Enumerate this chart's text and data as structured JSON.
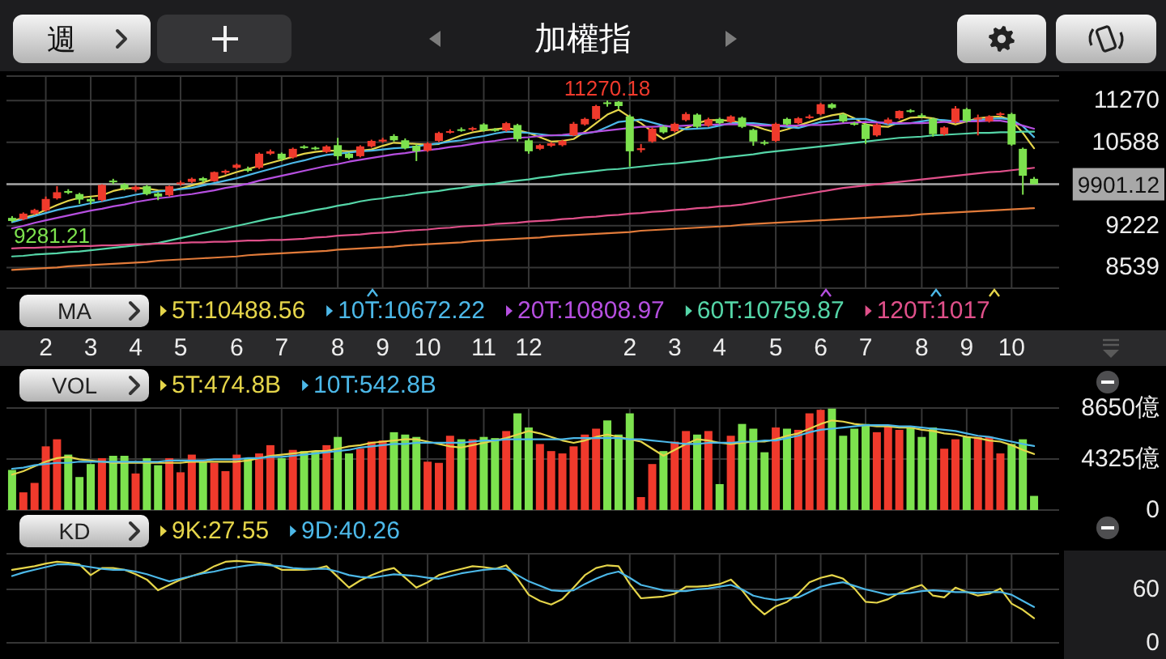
{
  "chart_data": [
    {
      "type": "candlestick",
      "title": "加權指",
      "legend": "bottom",
      "legend_title": "MA",
      "grid": true,
      "categories": [
        null,
        null,
        null,
        "2",
        null,
        null,
        null,
        "3",
        null,
        null,
        null,
        "4",
        null,
        null,
        null,
        "5",
        null,
        null,
        null,
        null,
        "6",
        null,
        null,
        null,
        "7",
        null,
        null,
        null,
        null,
        "8",
        null,
        null,
        null,
        "9",
        null,
        null,
        null,
        "10",
        null,
        null,
        null,
        null,
        "11",
        null,
        null,
        null,
        "12",
        null,
        null,
        null,
        null,
        null,
        null,
        null,
        null,
        "2",
        null,
        null,
        null,
        "3",
        null,
        null,
        null,
        "4",
        null,
        null,
        null,
        null,
        "5",
        null,
        null,
        null,
        "6",
        null,
        null,
        null,
        "7",
        null,
        null,
        null,
        null,
        "8",
        null,
        null,
        null,
        "9",
        null,
        null,
        null,
        "10",
        null,
        null
      ],
      "ohlc": [
        [
          9350,
          9380,
          9281.21,
          9300
        ],
        [
          9330,
          9440,
          9310,
          9420
        ],
        [
          9420,
          9500,
          9400,
          9480
        ],
        [
          9470,
          9700,
          9450,
          9660
        ],
        [
          9670,
          9870,
          9650,
          9770
        ],
        [
          9790,
          9820,
          9740,
          9760
        ],
        [
          9740,
          9760,
          9580,
          9650
        ],
        [
          9660,
          9700,
          9570,
          9620
        ],
        [
          9640,
          9900,
          9620,
          9890
        ],
        [
          9960,
          9990,
          9900,
          9940
        ],
        [
          9900,
          9920,
          9800,
          9830
        ],
        [
          9810,
          9880,
          9780,
          9860
        ],
        [
          9870,
          9890,
          9720,
          9740
        ],
        [
          9750,
          9770,
          9640,
          9700
        ],
        [
          9720,
          9880,
          9700,
          9870
        ],
        [
          9910,
          9960,
          9880,
          9930
        ],
        [
          9940,
          10010,
          9920,
          9990
        ],
        [
          10000,
          10020,
          9930,
          9960
        ],
        [
          9950,
          10110,
          9940,
          10100
        ],
        [
          10090,
          10140,
          10060,
          10120
        ],
        [
          10170,
          10240,
          10150,
          10220
        ],
        [
          10150,
          10190,
          10100,
          10120
        ],
        [
          10170,
          10420,
          10150,
          10400
        ],
        [
          10400,
          10470,
          10380,
          10440
        ],
        [
          10400,
          10420,
          10280,
          10310
        ],
        [
          10340,
          10500,
          10320,
          10480
        ],
        [
          10520,
          10540,
          10480,
          10500
        ],
        [
          10500,
          10520,
          10460,
          10480
        ],
        [
          10430,
          10540,
          10410,
          10520
        ],
        [
          10540,
          10660,
          10300,
          10360
        ],
        [
          10400,
          10420,
          10310,
          10330
        ],
        [
          10360,
          10540,
          10340,
          10520
        ],
        [
          10520,
          10630,
          10500,
          10610
        ],
        [
          10600,
          10660,
          10580,
          10630
        ],
        [
          10690,
          10720,
          10600,
          10620
        ],
        [
          10620,
          10650,
          10470,
          10490
        ],
        [
          10530,
          10560,
          10280,
          10440
        ],
        [
          10450,
          10590,
          10430,
          10570
        ],
        [
          10610,
          10760,
          10590,
          10740
        ],
        [
          10750,
          10800,
          10730,
          10770
        ],
        [
          10800,
          10830,
          10760,
          10790
        ],
        [
          10800,
          10840,
          10770,
          10820
        ],
        [
          10880,
          10900,
          10760,
          10780
        ],
        [
          10800,
          10820,
          10760,
          10790
        ],
        [
          10780,
          10920,
          10760,
          10900
        ],
        [
          10870,
          10890,
          10600,
          10640
        ],
        [
          10620,
          10650,
          10400,
          10440
        ],
        [
          10480,
          10560,
          10460,
          10540
        ],
        [
          10530,
          10590,
          10510,
          10570
        ],
        [
          10540,
          10630,
          10520,
          10610
        ],
        [
          10700,
          10920,
          10690,
          10890
        ],
        [
          10880,
          10990,
          10860,
          10970
        ],
        [
          10970,
          11200,
          10950,
          11180
        ],
        [
          11240,
          11270.18,
          11170,
          11230
        ],
        [
          11250,
          11260,
          11130,
          11180
        ],
        [
          11010,
          11040,
          10190,
          10440
        ],
        [
          10460,
          10560,
          10420,
          10490
        ],
        [
          10600,
          10830,
          10580,
          10810
        ],
        [
          10840,
          10860,
          10730,
          10750
        ],
        [
          10770,
          10910,
          10750,
          10890
        ],
        [
          10950,
          11080,
          10930,
          11050
        ],
        [
          11040,
          11060,
          10820,
          10840
        ],
        [
          10860,
          10990,
          10840,
          10960
        ],
        [
          10970,
          10990,
          10880,
          10900
        ],
        [
          10920,
          11030,
          10900,
          11010
        ],
        [
          10990,
          11010,
          10820,
          10840
        ],
        [
          10790,
          10810,
          10530,
          10600
        ],
        [
          10590,
          10620,
          10540,
          10570
        ],
        [
          10610,
          10910,
          10590,
          10890
        ],
        [
          10970,
          10990,
          10860,
          10880
        ],
        [
          10900,
          11000,
          10880,
          10980
        ],
        [
          11000,
          11040,
          10970,
          11010
        ],
        [
          11050,
          11230,
          11030,
          11210
        ],
        [
          11210,
          11230,
          11130,
          11150
        ],
        [
          11040,
          11060,
          10910,
          10930
        ],
        [
          10900,
          10920,
          10860,
          10880
        ],
        [
          10880,
          10900,
          10560,
          10640
        ],
        [
          10700,
          10900,
          10680,
          10880
        ],
        [
          10900,
          10990,
          10880,
          10960
        ],
        [
          10980,
          11110,
          10960,
          11100
        ],
        [
          11110,
          11130,
          11070,
          11090
        ],
        [
          11030,
          11060,
          10990,
          11010
        ],
        [
          10970,
          10990,
          10680,
          10720
        ],
        [
          10720,
          10850,
          10700,
          10830
        ],
        [
          10920,
          11180,
          10900,
          11140
        ],
        [
          11130,
          11150,
          10910,
          10930
        ],
        [
          10960,
          11040,
          10700,
          10990
        ],
        [
          10930,
          11030,
          10910,
          11010
        ],
        [
          11040,
          11080,
          11010,
          11060
        ],
        [
          11050,
          11070,
          10530,
          10550
        ],
        [
          10480,
          10500,
          9730,
          10040
        ],
        [
          9990,
          10020,
          9900,
          9901.12
        ]
      ],
      "colors": [
        "#7de24e",
        "#f03a2c",
        "#f03a2c",
        "#f03a2c",
        "#f03a2c",
        "#7de24e",
        "#7de24e",
        "#7de24e",
        "#f03a2c",
        "#7de24e",
        "#7de24e",
        "#f03a2c",
        "#7de24e",
        "#7de24e",
        "#f03a2c",
        "#f03a2c",
        "#f03a2c",
        "#7de24e",
        "#f03a2c",
        "#f03a2c",
        "#f03a2c",
        "#7de24e",
        "#f03a2c",
        "#f03a2c",
        "#7de24e",
        "#f03a2c",
        "#7de24e",
        "#7de24e",
        "#f03a2c",
        "#7de24e",
        "#7de24e",
        "#f03a2c",
        "#f03a2c",
        "#f03a2c",
        "#7de24e",
        "#7de24e",
        "#7de24e",
        "#f03a2c",
        "#f03a2c",
        "#f03a2c",
        "#7de24e",
        "#f03a2c",
        "#7de24e",
        "#7de24e",
        "#f03a2c",
        "#7de24e",
        "#7de24e",
        "#f03a2c",
        "#f03a2c",
        "#f03a2c",
        "#f03a2c",
        "#f03a2c",
        "#f03a2c",
        "#7de24e",
        "#7de24e",
        "#7de24e",
        "#f03a2c",
        "#f03a2c",
        "#7de24e",
        "#f03a2c",
        "#f03a2c",
        "#7de24e",
        "#f03a2c",
        "#7de24e",
        "#f03a2c",
        "#7de24e",
        "#7de24e",
        "#7de24e",
        "#f03a2c",
        "#7de24e",
        "#f03a2c",
        "#f03a2c",
        "#f03a2c",
        "#7de24e",
        "#7de24e",
        "#7de24e",
        "#7de24e",
        "#f03a2c",
        "#f03a2c",
        "#f03a2c",
        "#7de24e",
        "#7de24e",
        "#7de24e",
        "#f03a2c",
        "#f03a2c",
        "#7de24e",
        "#f03a2c",
        "#f03a2c",
        "#f03a2c",
        "#7de24e",
        "#7de24e",
        "#7de24e"
      ],
      "series": [
        {
          "name": "5T:10488.56",
          "type": "line",
          "color": "#e5d54a",
          "values": [
            9300,
            9350,
            9400,
            9480,
            9560,
            9630,
            9680,
            9700,
            9720,
            9790,
            9830,
            9840,
            9830,
            9800,
            9790,
            9830,
            9880,
            9930,
            9990,
            10040,
            10100,
            10150,
            10200,
            10250,
            10300,
            10350,
            10400,
            10430,
            10450,
            10450,
            10440,
            10450,
            10470,
            10530,
            10580,
            10570,
            10560,
            10550,
            10560,
            10630,
            10700,
            10750,
            10780,
            10800,
            10820,
            10790,
            10740,
            10670,
            10600,
            10610,
            10640,
            10760,
            10900,
            11040,
            11120,
            11000,
            10900,
            10760,
            10640,
            10720,
            10820,
            10900,
            10950,
            10950,
            10940,
            10900,
            10860,
            10800,
            10750,
            10800,
            10860,
            10920,
            10980,
            11030,
            11060,
            10980,
            10880,
            10850,
            10840,
            10920,
            10990,
            11000,
            10980,
            10930,
            10880,
            10930,
            10980,
            11000,
            11010,
            10950,
            10740,
            10488.56
          ]
        },
        {
          "name": "10T:10672.22",
          "type": "line",
          "color": "#4cb8e8",
          "values": [
            9280,
            9330,
            9380,
            9430,
            9480,
            9520,
            9550,
            9590,
            9620,
            9660,
            9690,
            9730,
            9760,
            9780,
            9800,
            9820,
            9840,
            9880,
            9920,
            9960,
            10000,
            10050,
            10100,
            10150,
            10200,
            10250,
            10290,
            10340,
            10380,
            10400,
            10420,
            10440,
            10450,
            10470,
            10490,
            10500,
            10520,
            10550,
            10570,
            10600,
            10620,
            10660,
            10690,
            10730,
            10760,
            10750,
            10740,
            10720,
            10700,
            10700,
            10700,
            10730,
            10760,
            10840,
            10920,
            10940,
            10960,
            10910,
            10860,
            10830,
            10800,
            10810,
            10820,
            10860,
            10900,
            10900,
            10900,
            10880,
            10860,
            10840,
            10820,
            10870,
            10920,
            10940,
            10960,
            10970,
            10970,
            10920,
            10880,
            10890,
            10900,
            10930,
            10960,
            10950,
            10930,
            10940,
            10950,
            10970,
            10980,
            10960,
            10850,
            10672.22
          ]
        },
        {
          "name": "20T:10808.97",
          "type": "line",
          "color": "#b64fe0",
          "values": [
            9180,
            9220,
            9270,
            9310,
            9350,
            9390,
            9430,
            9470,
            9500,
            9540,
            9570,
            9610,
            9640,
            9670,
            9690,
            9720,
            9740,
            9770,
            9800,
            9840,
            9870,
            9910,
            9960,
            10000,
            10040,
            10080,
            10120,
            10160,
            10200,
            10230,
            10270,
            10300,
            10330,
            10360,
            10390,
            10410,
            10440,
            10460,
            10480,
            10510,
            10530,
            10560,
            10590,
            10610,
            10640,
            10660,
            10670,
            10690,
            10700,
            10710,
            10730,
            10740,
            10760,
            10780,
            10800,
            10820,
            10840,
            10840,
            10850,
            10850,
            10860,
            10870,
            10870,
            10880,
            10880,
            10880,
            10870,
            10860,
            10860,
            10860,
            10860,
            10870,
            10870,
            10880,
            10900,
            10910,
            10920,
            10910,
            10910,
            10900,
            10900,
            10900,
            10910,
            10920,
            10920,
            10930,
            10930,
            10940,
            10940,
            10910,
            10860,
            10808.97
          ]
        },
        {
          "name": "60T:10759.87",
          "type": "line",
          "color": "#55d6a8",
          "values": [
            8720,
            8730,
            8750,
            8760,
            8770,
            8790,
            8800,
            8820,
            8840,
            8860,
            8880,
            8900,
            8920,
            8940,
            8980,
            9020,
            9060,
            9100,
            9140,
            9180,
            9220,
            9260,
            9300,
            9340,
            9370,
            9410,
            9440,
            9480,
            9510,
            9550,
            9580,
            9620,
            9650,
            9670,
            9700,
            9720,
            9750,
            9770,
            9790,
            9820,
            9840,
            9870,
            9890,
            9910,
            9940,
            9960,
            9980,
            10010,
            10030,
            10060,
            10080,
            10100,
            10120,
            10140,
            10150,
            10170,
            10190,
            10210,
            10230,
            10240,
            10260,
            10280,
            10300,
            10330,
            10350,
            10370,
            10390,
            10420,
            10440,
            10460,
            10480,
            10500,
            10520,
            10540,
            10560,
            10580,
            10600,
            10620,
            10640,
            10660,
            10670,
            10680,
            10700,
            10710,
            10720,
            10730,
            10740,
            10740,
            10750,
            10750,
            10760,
            10759.87
          ]
        },
        {
          "name": "120T:1017",
          "type": "line",
          "color": "#e0508a",
          "values": [
            8850,
            8860,
            8860,
            8870,
            8870,
            8880,
            8890,
            8890,
            8900,
            8900,
            8910,
            8920,
            8920,
            8930,
            8930,
            8940,
            8950,
            8950,
            8960,
            8960,
            8970,
            8980,
            8980,
            8990,
            8990,
            9000,
            9010,
            9030,
            9040,
            9060,
            9070,
            9080,
            9100,
            9110,
            9120,
            9140,
            9150,
            9160,
            9180,
            9190,
            9210,
            9220,
            9230,
            9250,
            9260,
            9270,
            9290,
            9300,
            9310,
            9330,
            9340,
            9360,
            9370,
            9390,
            9400,
            9420,
            9430,
            9450,
            9460,
            9480,
            9490,
            9510,
            9520,
            9540,
            9550,
            9570,
            9600,
            9630,
            9660,
            9690,
            9720,
            9750,
            9780,
            9810,
            9840,
            9860,
            9880,
            9900,
            9920,
            9940,
            9960,
            9980,
            10000,
            10020,
            10040,
            10060,
            10080,
            10100,
            10110,
            10130,
            10150,
            10170
          ]
        },
        {
          "type": "line",
          "color": "#e27b3a",
          "values": [
            8500,
            8510,
            8520,
            8530,
            8540,
            8560,
            8570,
            8580,
            8590,
            8600,
            8610,
            8620,
            8630,
            8650,
            8660,
            8670,
            8680,
            8690,
            8700,
            8710,
            8720,
            8740,
            8750,
            8760,
            8770,
            8780,
            8790,
            8800,
            8810,
            8830,
            8840,
            8850,
            8860,
            8870,
            8880,
            8900,
            8910,
            8920,
            8930,
            8940,
            8950,
            8970,
            8980,
            8990,
            9000,
            9010,
            9020,
            9030,
            9050,
            9060,
            9070,
            9080,
            9090,
            9100,
            9110,
            9120,
            9140,
            9150,
            9160,
            9170,
            9180,
            9190,
            9200,
            9210,
            9220,
            9240,
            9250,
            9260,
            9270,
            9280,
            9290,
            9300,
            9310,
            9320,
            9330,
            9340,
            9350,
            9360,
            9370,
            9380,
            9390,
            9410,
            9420,
            9430,
            9440,
            9450,
            9460,
            9470,
            9480,
            9490,
            9500,
            9510
          ]
        }
      ],
      "ylim": [
        8200,
        11670
      ],
      "yticks": [
        8539,
        9222,
        10588,
        11270
      ],
      "ref_lines": [
        {
          "axis": "y",
          "value": 9901.12,
          "label": "9901.12",
          "color": "#a8a8a8"
        }
      ],
      "annotations": [
        "週",
        {
          "text": "11270.18",
          "y": 11270.18
        },
        {
          "text": "9281.21",
          "y": 9281.21
        }
      ]
    },
    {
      "type": "bar",
      "legend": "top",
      "legend_title": "VOL",
      "grid": true,
      "tick_labels": "y",
      "categories": [
        null,
        null,
        null,
        "2",
        null,
        null,
        null,
        "3",
        null,
        null,
        null,
        "4",
        null,
        null,
        null,
        "5",
        null,
        null,
        null,
        null,
        "6",
        null,
        null,
        null,
        "7",
        null,
        null,
        null,
        null,
        "8",
        null,
        null,
        null,
        "9",
        null,
        null,
        null,
        "10",
        null,
        null,
        null,
        null,
        "11",
        null,
        null,
        null,
        "12",
        null,
        null,
        null,
        null,
        null,
        null,
        null,
        null,
        "2",
        null,
        null,
        null,
        "3",
        null,
        null,
        null,
        "4",
        null,
        null,
        null,
        null,
        "5",
        null,
        null,
        null,
        "6",
        null,
        null,
        null,
        "7",
        null,
        null,
        null,
        null,
        "8",
        null,
        null,
        null,
        "9",
        null,
        null,
        null,
        "10",
        null,
        null
      ],
      "series": [
        {
          "colors": [
            "#7de24e",
            "#f03a2c",
            "#f03a2c",
            "#f03a2c",
            "#f03a2c",
            "#7de24e",
            "#7de24e",
            "#7de24e",
            "#f03a2c",
            "#7de24e",
            "#7de24e",
            "#f03a2c",
            "#7de24e",
            "#7de24e",
            "#f03a2c",
            "#f03a2c",
            "#f03a2c",
            "#7de24e",
            "#f03a2c",
            "#f03a2c",
            "#f03a2c",
            "#7de24e",
            "#f03a2c",
            "#f03a2c",
            "#7de24e",
            "#f03a2c",
            "#7de24e",
            "#7de24e",
            "#f03a2c",
            "#7de24e",
            "#7de24e",
            "#f03a2c",
            "#f03a2c",
            "#f03a2c",
            "#7de24e",
            "#7de24e",
            "#7de24e",
            "#f03a2c",
            "#f03a2c",
            "#f03a2c",
            "#7de24e",
            "#f03a2c",
            "#7de24e",
            "#7de24e",
            "#f03a2c",
            "#7de24e",
            "#7de24e",
            "#f03a2c",
            "#f03a2c",
            "#f03a2c",
            "#f03a2c",
            "#f03a2c",
            "#f03a2c",
            "#7de24e",
            "#7de24e",
            "#7de24e",
            "#f03a2c",
            "#f03a2c",
            "#7de24e",
            "#f03a2c",
            "#f03a2c",
            "#7de24e",
            "#f03a2c",
            "#7de24e",
            "#f03a2c",
            "#7de24e",
            "#7de24e",
            "#7de24e",
            "#f03a2c",
            "#7de24e",
            "#f03a2c",
            "#f03a2c",
            "#f03a2c",
            "#7de24e",
            "#7de24e",
            "#7de24e",
            "#7de24e",
            "#f03a2c",
            "#f03a2c",
            "#f03a2c",
            "#7de24e",
            "#7de24e",
            "#7de24e",
            "#f03a2c",
            "#f03a2c",
            "#7de24e",
            "#f03a2c",
            "#f03a2c",
            "#f03a2c",
            "#7de24e",
            "#7de24e",
            "#7de24e"
          ],
          "values": [
            3400,
            1500,
            2300,
            5400,
            6000,
            4700,
            2800,
            3900,
            4400,
            4600,
            4600,
            3100,
            4400,
            3800,
            4400,
            3200,
            4700,
            4100,
            4000,
            3300,
            4700,
            4400,
            4800,
            5500,
            4400,
            5100,
            5000,
            5000,
            5500,
            6200,
            4800,
            5200,
            5800,
            5900,
            6600,
            6400,
            6200,
            4100,
            4000,
            6300,
            6000,
            6000,
            6200,
            6100,
            6700,
            8200,
            7000,
            5600,
            5000,
            4800,
            5400,
            6400,
            6900,
            7600,
            6400,
            8200,
            1100,
            3900,
            5000,
            5800,
            6700,
            6400,
            6700,
            2200,
            6300,
            7300,
            6900,
            4900,
            7000,
            6900,
            6800,
            8200,
            8500,
            8600,
            6300,
            6900,
            7300,
            6600,
            7200,
            6800,
            7000,
            6200,
            7000,
            5200,
            6000,
            6200,
            6200,
            6200,
            4800,
            5600,
            6000,
            1200
          ]
        },
        {
          "name": "5T:474.8B",
          "type": "line",
          "color": "#e5d54a",
          "values": [
            3000,
            3300,
            3700,
            4100,
            4400,
            4500,
            4300,
            4200,
            4100,
            4000,
            4000,
            4000,
            4000,
            4000,
            4000,
            4000,
            4100,
            4100,
            4100,
            4100,
            4100,
            4200,
            4400,
            4600,
            4700,
            4800,
            4900,
            5000,
            5000,
            5200,
            5400,
            5500,
            5700,
            5800,
            5900,
            6000,
            6000,
            5800,
            5600,
            5400,
            5300,
            5500,
            5700,
            5900,
            6100,
            6400,
            6700,
            6500,
            6200,
            5900,
            5700,
            5900,
            6200,
            6400,
            6200,
            6000,
            5800,
            5200,
            4600,
            5100,
            5600,
            6000,
            5900,
            5700,
            5600,
            5700,
            5800,
            5800,
            6000,
            6300,
            6500,
            6900,
            7300,
            7600,
            7500,
            7300,
            7200,
            7100,
            7100,
            7000,
            7000,
            6800,
            6700,
            6500,
            6400,
            6200,
            6100,
            5900,
            5800,
            5500,
            5100,
            4748
          ]
        },
        {
          "name": "10T:542.8B",
          "type": "line",
          "color": "#4cb8e8",
          "values": [
            3500,
            3600,
            3800,
            3900,
            4000,
            4000,
            4100,
            4100,
            4100,
            4100,
            4100,
            4100,
            4100,
            4100,
            4200,
            4200,
            4200,
            4200,
            4300,
            4300,
            4300,
            4400,
            4400,
            4500,
            4500,
            4600,
            4700,
            4800,
            4900,
            5000,
            5100,
            5300,
            5400,
            5500,
            5600,
            5600,
            5700,
            5700,
            5700,
            5700,
            5700,
            5800,
            5900,
            5900,
            6000,
            6000,
            6000,
            6000,
            6000,
            6000,
            6100,
            6100,
            6100,
            6100,
            6100,
            6000,
            6000,
            5900,
            5800,
            5700,
            5600,
            5600,
            5700,
            5700,
            5700,
            5800,
            5800,
            5900,
            5900,
            6100,
            6300,
            6600,
            6800,
            6900,
            7000,
            7100,
            7200,
            7200,
            7200,
            7100,
            7100,
            7000,
            6900,
            6800,
            6700,
            6500,
            6300,
            6200,
            6000,
            5800,
            5600,
            5428
          ]
        }
      ],
      "ylim": [
        0,
        8650
      ],
      "yticks": [
        0,
        {
          "value": 4325,
          "label": "4325億"
        },
        {
          "value": 8650,
          "label": "8650億"
        }
      ]
    },
    {
      "type": "line",
      "legend": "top",
      "legend_title": "KD",
      "grid": true,
      "tick_labels": "y",
      "categories": [
        null,
        null,
        null,
        "2",
        null,
        null,
        null,
        "3",
        null,
        null,
        null,
        "4",
        null,
        null,
        null,
        "5",
        null,
        null,
        null,
        null,
        "6",
        null,
        null,
        null,
        "7",
        null,
        null,
        null,
        null,
        "8",
        null,
        null,
        null,
        "9",
        null,
        null,
        null,
        "10",
        null,
        null,
        null,
        null,
        "11",
        null,
        null,
        null,
        "12",
        null,
        null,
        null,
        null,
        null,
        null,
        null,
        null,
        "2",
        null,
        null,
        null,
        "3",
        null,
        null,
        null,
        "4",
        null,
        null,
        null,
        null,
        "5",
        null,
        null,
        null,
        "6",
        null,
        null,
        null,
        "7",
        null,
        null,
        null,
        null,
        "8",
        null,
        null,
        null,
        "9",
        null,
        null,
        null,
        "10",
        null,
        null
      ],
      "series": [
        {
          "name": "9K:27.55",
          "color": "#e5d54a",
          "values": [
            82,
            84,
            86,
            89,
            91,
            90,
            88,
            76,
            84,
            84,
            82,
            77,
            71,
            59,
            65,
            71,
            75,
            79,
            86,
            91,
            92,
            91,
            90,
            88,
            82,
            82,
            82,
            83,
            86,
            74,
            62,
            70,
            76,
            81,
            84,
            73,
            62,
            68,
            76,
            80,
            83,
            86,
            85,
            83,
            87,
            72,
            54,
            47,
            43,
            49,
            62,
            76,
            84,
            87,
            86,
            66,
            50,
            51,
            52,
            55,
            63,
            63,
            64,
            66,
            71,
            59,
            43,
            32,
            41,
            46,
            55,
            68,
            73,
            76,
            72,
            61,
            46,
            45,
            49,
            56,
            61,
            65,
            53,
            51,
            62,
            57,
            53,
            55,
            61,
            44,
            37,
            27.55
          ]
        },
        {
          "name": "9D:40.26",
          "color": "#4cb8e8",
          "values": [
            75,
            79,
            82,
            85,
            88,
            88,
            87,
            85,
            83,
            82,
            82,
            80,
            77,
            73,
            69,
            72,
            75,
            78,
            80,
            83,
            85,
            87,
            88,
            87,
            86,
            84,
            83,
            83,
            83,
            80,
            76,
            74,
            73,
            75,
            77,
            76,
            75,
            73,
            72,
            75,
            78,
            80,
            82,
            83,
            83,
            76,
            69,
            64,
            59,
            58,
            59,
            66,
            72,
            77,
            80,
            73,
            65,
            62,
            59,
            58,
            58,
            60,
            61,
            63,
            65,
            60,
            53,
            50,
            48,
            50,
            51,
            57,
            63,
            66,
            68,
            64,
            60,
            57,
            54,
            55,
            56,
            58,
            59,
            58,
            57,
            57,
            56,
            57,
            57,
            54,
            47,
            40.26
          ]
        }
      ],
      "ylim": [
        0,
        100
      ],
      "yticks": [
        0,
        60
      ]
    }
  ]
}
